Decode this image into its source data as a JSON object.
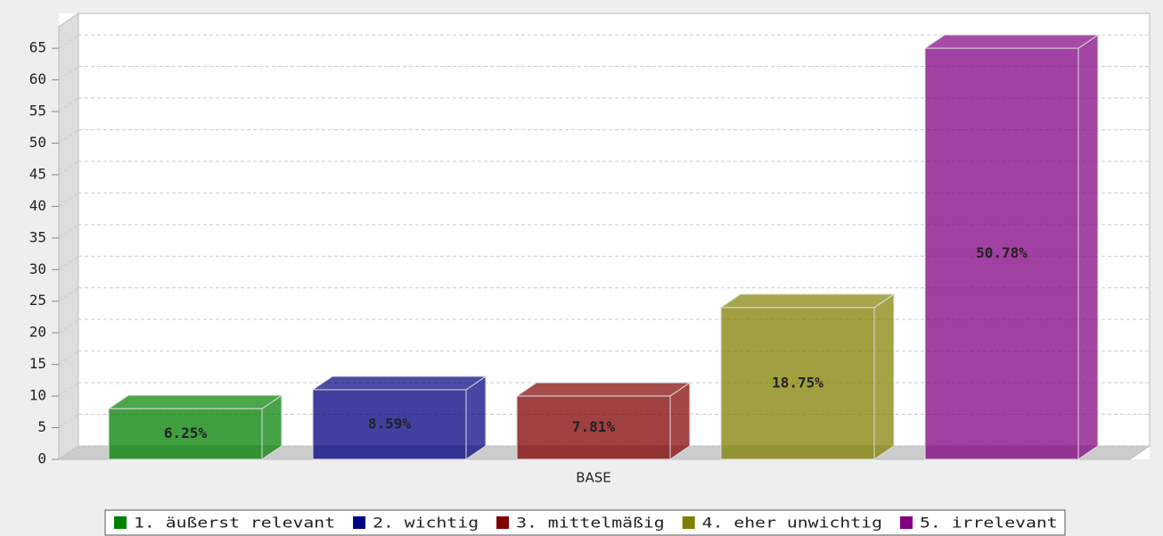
{
  "chart_data": {
    "type": "bar3d",
    "categories": [
      "BASE"
    ],
    "series": [
      {
        "name": "1. äußerst relevant",
        "color": "#008000",
        "values": [
          8
        ],
        "value_labels": [
          "6.25%"
        ]
      },
      {
        "name": "2. wichtig",
        "color": "#000080",
        "values": [
          11
        ],
        "value_labels": [
          "8.59%"
        ]
      },
      {
        "name": "3. mittelmäßig",
        "color": "#800000",
        "values": [
          10
        ],
        "value_labels": [
          "7.81%"
        ]
      },
      {
        "name": "4. eher unwichtig",
        "color": "#808000",
        "values": [
          24
        ],
        "value_labels": [
          "18.75%"
        ]
      },
      {
        "name": "5. irrelevant",
        "color": "#800080",
        "values": [
          65
        ],
        "value_labels": [
          "50.78%"
        ]
      }
    ],
    "ylim": [
      0,
      68.4
    ],
    "yticks": [
      0,
      5,
      10,
      15,
      20,
      25,
      30,
      35,
      40,
      45,
      50,
      55,
      60,
      65
    ],
    "grid": true,
    "legend": "bottom"
  }
}
